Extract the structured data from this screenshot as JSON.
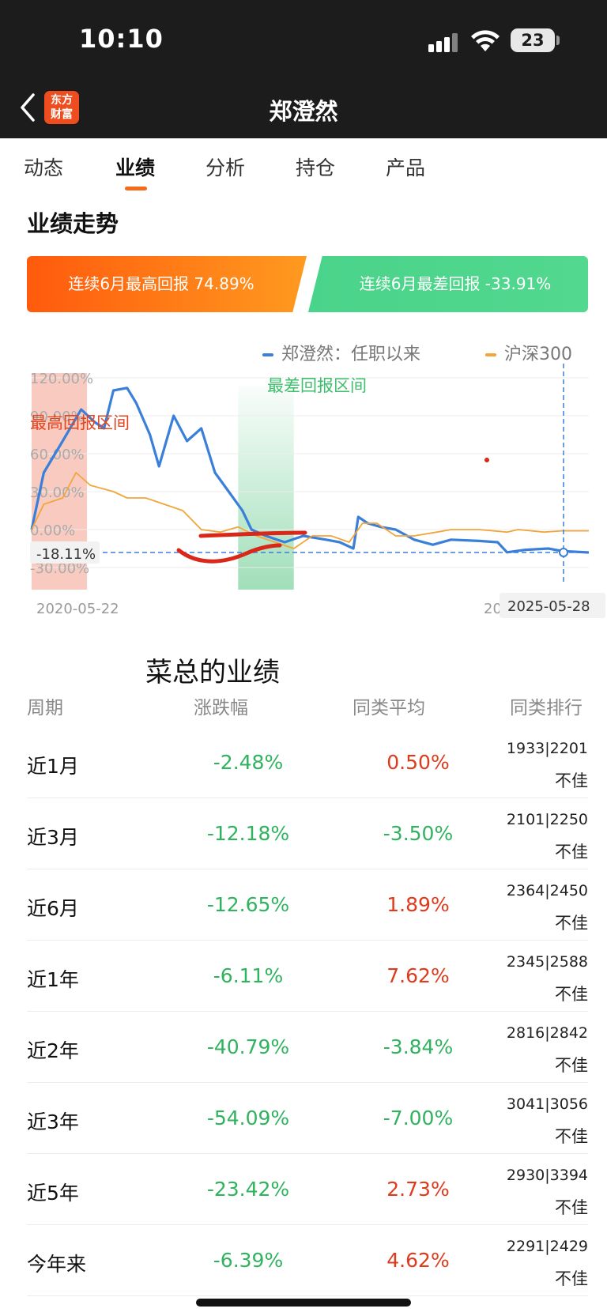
{
  "status_bar": {
    "time": "10:10",
    "battery": "23",
    "icons": [
      "cellular-signal-icon",
      "wifi-icon",
      "battery-icon"
    ]
  },
  "nav": {
    "title": "郑澄然",
    "logo_line1": "东方",
    "logo_line2": "财富",
    "back_icon": "chevron-left-icon"
  },
  "tabs": [
    {
      "label": "动态",
      "active": false
    },
    {
      "label": "业绩",
      "active": true
    },
    {
      "label": "分析",
      "active": false
    },
    {
      "label": "持仓",
      "active": false
    },
    {
      "label": "产品",
      "active": false
    }
  ],
  "section_title": "业绩走势",
  "banners": {
    "best": "连续6月最高回报 74.89%",
    "worst": "连续6月最差回报 -33.91%"
  },
  "legend": {
    "manager": "郑澄然：任职以来",
    "index": "沪深300"
  },
  "colors": {
    "manager_line": "#3a7fd9",
    "index_line": "#f2a53a",
    "best_zone": "#f7b9ab",
    "worst_zone": "#8fd9ac",
    "rise": "#e03a1c",
    "fall": "#2fb35e",
    "accent": "#f56a1b"
  },
  "chart_data": {
    "type": "line",
    "y_ticks": [
      "120.00%",
      "90.00%",
      "60.00%",
      "30.00%",
      "0.00%",
      "-30.00%"
    ],
    "ylim": [
      -30,
      120
    ],
    "x_start": "2020-05-22",
    "x_end": "2025-05-28",
    "x_end_partial": "20",
    "latest_value": "-18.11%",
    "best_zone_label": "最高回报区间",
    "worst_zone_label": "最差回报区间",
    "best_zone": [
      "2020-05-22",
      "2020-11-20"
    ],
    "worst_zone": [
      "2022-04-01",
      "2022-10-01"
    ],
    "series": [
      {
        "name": "郑澄然：任职以来",
        "points": [
          [
            "2020-05-22",
            0
          ],
          [
            "2020-07-01",
            45
          ],
          [
            "2020-09-01",
            70
          ],
          [
            "2020-11-01",
            95
          ],
          [
            "2020-12-15",
            85
          ],
          [
            "2021-01-15",
            80
          ],
          [
            "2021-02-15",
            110
          ],
          [
            "2021-04-01",
            112
          ],
          [
            "2021-05-01",
            100
          ],
          [
            "2021-06-15",
            75
          ],
          [
            "2021-07-15",
            50
          ],
          [
            "2021-09-01",
            90
          ],
          [
            "2021-10-15",
            70
          ],
          [
            "2021-12-01",
            80
          ],
          [
            "2022-01-15",
            45
          ],
          [
            "2022-03-01",
            30
          ],
          [
            "2022-04-15",
            15
          ],
          [
            "2022-05-15",
            0
          ],
          [
            "2022-07-01",
            -5
          ],
          [
            "2022-09-01",
            -10
          ],
          [
            "2022-11-01",
            -5
          ],
          [
            "2023-01-15",
            -8
          ],
          [
            "2023-03-01",
            -10
          ],
          [
            "2023-04-15",
            -15
          ],
          [
            "2023-05-01",
            10
          ],
          [
            "2023-06-01",
            5
          ],
          [
            "2023-07-15",
            2
          ],
          [
            "2023-09-01",
            0
          ],
          [
            "2023-11-01",
            -8
          ],
          [
            "2024-01-01",
            -12
          ],
          [
            "2024-03-01",
            -8
          ],
          [
            "2024-06-01",
            -9
          ],
          [
            "2024-08-01",
            -10
          ],
          [
            "2024-09-01",
            -18
          ],
          [
            "2024-11-01",
            -16
          ],
          [
            "2025-01-15",
            -15
          ],
          [
            "2025-03-01",
            -17
          ],
          [
            "2025-05-28",
            -18.11
          ]
        ]
      },
      {
        "name": "沪深300",
        "points": [
          [
            "2020-05-22",
            0
          ],
          [
            "2020-07-01",
            20
          ],
          [
            "2020-09-01",
            25
          ],
          [
            "2020-10-15",
            45
          ],
          [
            "2020-12-01",
            35
          ],
          [
            "2021-02-15",
            30
          ],
          [
            "2021-04-01",
            25
          ],
          [
            "2021-06-01",
            25
          ],
          [
            "2021-08-01",
            20
          ],
          [
            "2021-10-01",
            15
          ],
          [
            "2021-12-01",
            0
          ],
          [
            "2022-02-01",
            -2
          ],
          [
            "2022-04-01",
            2
          ],
          [
            "2022-06-01",
            -5
          ],
          [
            "2022-08-01",
            -10
          ],
          [
            "2022-10-01",
            -15
          ],
          [
            "2022-12-01",
            -5
          ],
          [
            "2023-02-01",
            -5
          ],
          [
            "2023-04-01",
            -10
          ],
          [
            "2023-05-15",
            5
          ],
          [
            "2023-07-01",
            5
          ],
          [
            "2023-09-01",
            -5
          ],
          [
            "2023-11-01",
            -5
          ],
          [
            "2024-01-15",
            -2
          ],
          [
            "2024-03-01",
            0
          ],
          [
            "2024-06-01",
            0
          ],
          [
            "2024-09-01",
            -2
          ],
          [
            "2024-10-08",
            0
          ],
          [
            "2025-01-01",
            -2
          ],
          [
            "2025-03-01",
            -1
          ],
          [
            "2025-05-28",
            -1
          ]
        ]
      }
    ]
  },
  "annotation_text": "菜总的业绩",
  "table": {
    "headers": [
      "周期",
      "涨跌幅",
      "同类平均",
      "同类排行"
    ],
    "rows": [
      {
        "period": "近1月",
        "change": "-2.48%",
        "avg": "0.50%",
        "rank": "1933|2201",
        "verdict": "不佳",
        "change_dir": "down",
        "avg_dir": "up"
      },
      {
        "period": "近3月",
        "change": "-12.18%",
        "avg": "-3.50%",
        "rank": "2101|2250",
        "verdict": "不佳",
        "change_dir": "down",
        "avg_dir": "down"
      },
      {
        "period": "近6月",
        "change": "-12.65%",
        "avg": "1.89%",
        "rank": "2364|2450",
        "verdict": "不佳",
        "change_dir": "down",
        "avg_dir": "up"
      },
      {
        "period": "近1年",
        "change": "-6.11%",
        "avg": "7.62%",
        "rank": "2345|2588",
        "verdict": "不佳",
        "change_dir": "down",
        "avg_dir": "up"
      },
      {
        "period": "近2年",
        "change": "-40.79%",
        "avg": "-3.84%",
        "rank": "2816|2842",
        "verdict": "不佳",
        "change_dir": "down",
        "avg_dir": "down"
      },
      {
        "period": "近3年",
        "change": "-54.09%",
        "avg": "-7.00%",
        "rank": "3041|3056",
        "verdict": "不佳",
        "change_dir": "down",
        "avg_dir": "down"
      },
      {
        "period": "近5年",
        "change": "-23.42%",
        "avg": "2.73%",
        "rank": "2930|3394",
        "verdict": "不佳",
        "change_dir": "down",
        "avg_dir": "up"
      },
      {
        "period": "今年来",
        "change": "-6.39%",
        "avg": "4.62%",
        "rank": "2291|2429",
        "verdict": "不佳",
        "change_dir": "down",
        "avg_dir": "up"
      }
    ]
  }
}
